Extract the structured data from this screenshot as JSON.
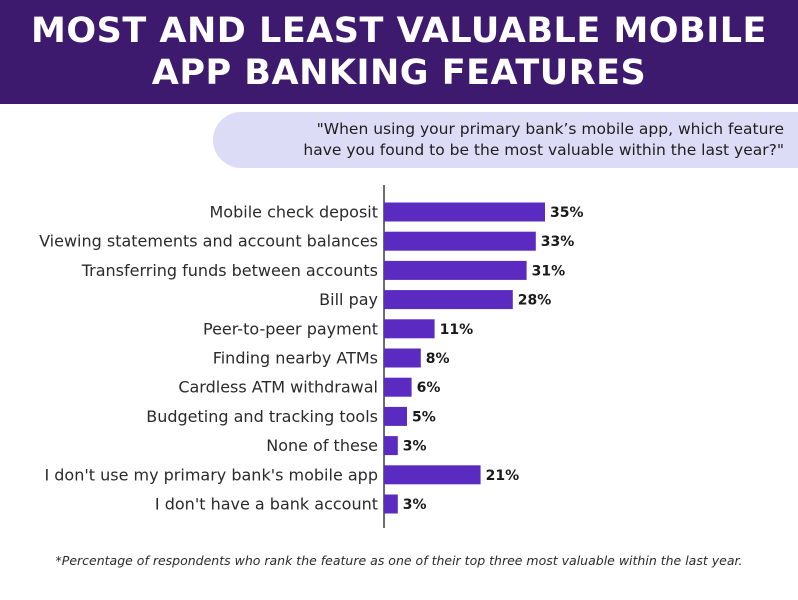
{
  "title": {
    "line1": "MOST AND LEAST VALUABLE MOBILE",
    "line2": "APP BANKING FEATURES"
  },
  "question": {
    "line1": "\"When using your primary bank’s mobile app, which feature",
    "line2": "have you found to be the most valuable within the last year?\""
  },
  "footnote": "*Percentage of respondents who rank the feature as one of their top three most valuable within the last year.",
  "colors": {
    "header_bg": "#3d1a6e",
    "bar": "#5b2bc1",
    "question_bg": "#dcdcf6"
  },
  "chart_data": {
    "type": "bar",
    "orientation": "horizontal",
    "categories": [
      "Mobile check deposit",
      "Viewing statements and account balances",
      "Transferring funds between accounts",
      "Bill pay",
      "Peer-to-peer payment",
      "Finding nearby ATMs",
      "Cardless ATM withdrawal",
      "Budgeting and tracking tools",
      "None of these",
      "I don't use my primary bank's mobile app",
      "I don't have a bank account"
    ],
    "values": [
      35,
      33,
      31,
      28,
      11,
      8,
      6,
      5,
      3,
      21,
      3
    ],
    "value_labels": [
      "35%",
      "33%",
      "31%",
      "28%",
      "11%",
      "8%",
      "6%",
      "5%",
      "3%",
      "21%",
      "3%"
    ],
    "unit": "%",
    "grid": false,
    "legend": "none"
  }
}
